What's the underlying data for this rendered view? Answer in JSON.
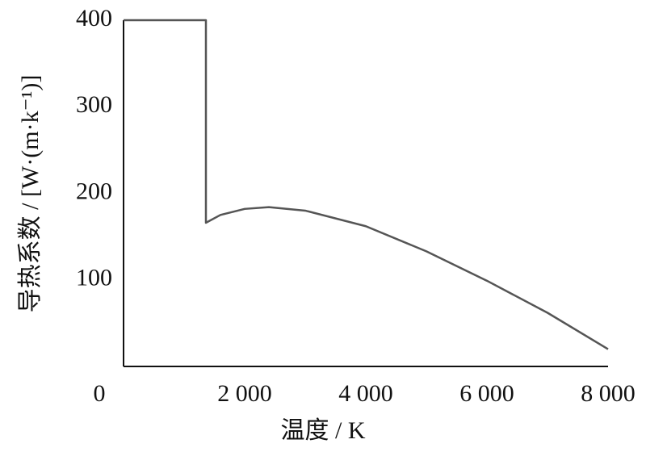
{
  "chart_data": {
    "type": "line",
    "x_label": "温度 / K",
    "y_label": "导热系数 / [W·(m·k⁻¹)]",
    "x": [
      0,
      1360,
      1360,
      1600,
      2000,
      2400,
      3000,
      4000,
      5000,
      6000,
      7000,
      8000
    ],
    "values": [
      400,
      400,
      166,
      175,
      182,
      184,
      180,
      162,
      133,
      99,
      62,
      20
    ],
    "color": "#555555",
    "xlim": [
      0,
      8000
    ],
    "ylim": [
      0,
      400
    ],
    "xticks": [
      0,
      {
        "value": 2000,
        "label": "2 000"
      },
      {
        "value": 4000,
        "label": "4 000"
      },
      {
        "value": 6000,
        "label": "6 000"
      },
      {
        "value": 8000,
        "label": "8 000"
      }
    ],
    "yticks": [
      100,
      200,
      300,
      400
    ]
  }
}
